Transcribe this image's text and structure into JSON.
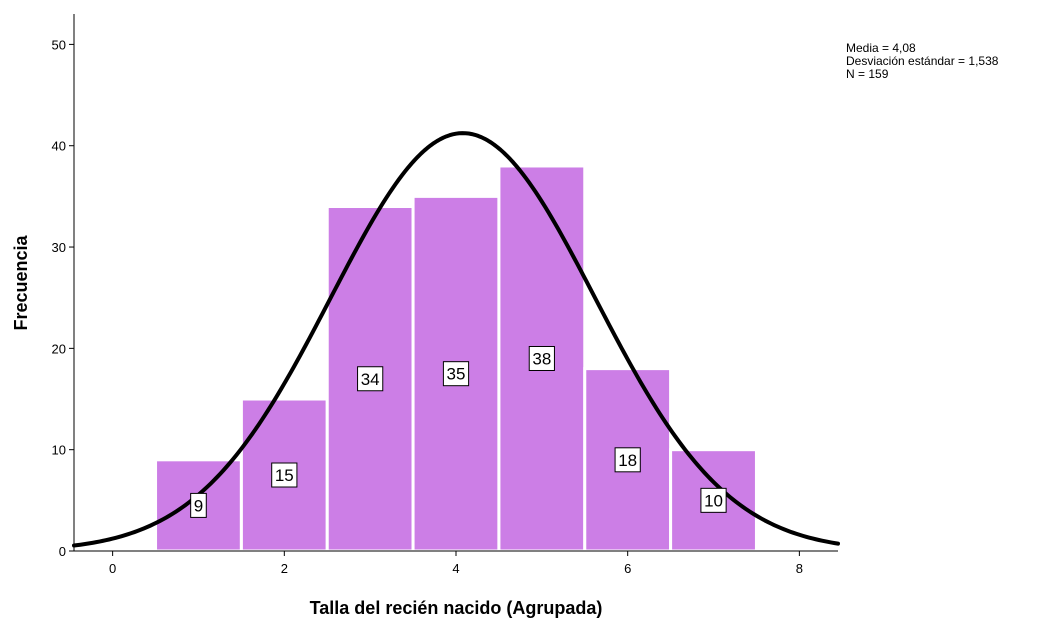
{
  "chart_data": {
    "type": "bar",
    "subtype": "histogram-with-normal-curve",
    "xlabel": "Talla del recién nacido (Agrupada)",
    "ylabel": "Frecuencia",
    "x_ticks": [
      0,
      2,
      4,
      6,
      8
    ],
    "y_ticks": [
      0,
      10,
      20,
      30,
      40,
      50
    ],
    "xlim": [
      -0.45,
      8.45
    ],
    "ylim": [
      0,
      53
    ],
    "bin_width": 1,
    "bins": [
      {
        "x": 1,
        "value": 9
      },
      {
        "x": 2,
        "value": 15
      },
      {
        "x": 3,
        "value": 34
      },
      {
        "x": 4,
        "value": 35
      },
      {
        "x": 5,
        "value": 38
      },
      {
        "x": 6,
        "value": 18
      },
      {
        "x": 7,
        "value": 10
      }
    ],
    "bar_color": "#cc7ee6",
    "curve_color": "#000000",
    "normal_curve": {
      "mean": 4.08,
      "sd": 1.538,
      "n": 159
    },
    "stats_lines": [
      "Media = 4,08",
      "Desviación estándar = 1,538",
      "N = 159"
    ],
    "grid": false,
    "legend": "top-right"
  }
}
